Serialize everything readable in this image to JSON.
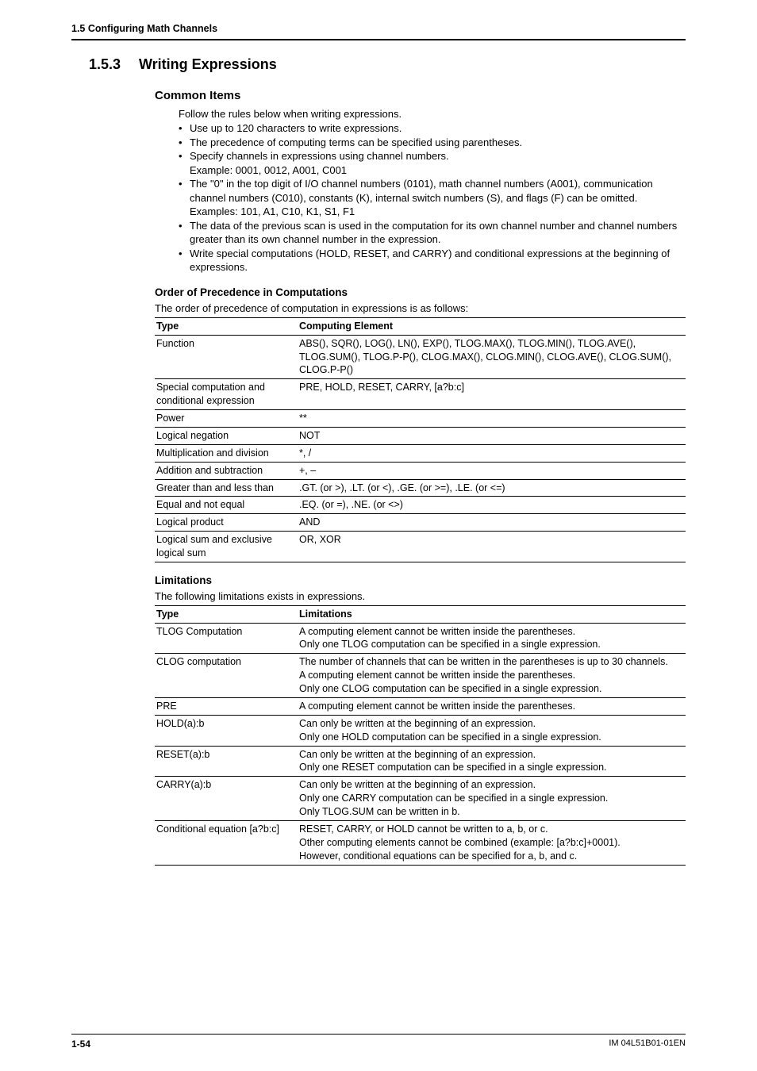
{
  "header": {
    "running": "1.5  Configuring Math Channels"
  },
  "section": {
    "number": "1.5.3",
    "title": "Writing Expressions"
  },
  "common": {
    "title": "Common Items",
    "intro": "Follow the rules below when writing expressions.",
    "bullets": [
      {
        "text": "Use up to 120 characters to write expressions."
      },
      {
        "text": "The precedence of computing terms can be specified using parentheses."
      },
      {
        "text": "Specify channels in expressions using channel numbers.",
        "sub": "Example: 0001, 0012, A001, C001"
      },
      {
        "text": "The \"0\" in the top digit of I/O channel numbers (0101), math channel numbers (A001), communication channel numbers (C010), constants (K), internal switch numbers (S), and flags (F) can be omitted.",
        "sub": "Examples: 101, A1, C10, K1, S1, F1"
      },
      {
        "text": "The data of the previous scan is used in the computation for its own channel number and channel numbers greater than its own channel number in the expression."
      },
      {
        "text": "Write special computations (HOLD, RESET, and CARRY) and conditional expressions at the beginning of expressions."
      }
    ]
  },
  "precedence": {
    "title": "Order of Precedence in Computations",
    "intro": "The order of precedence of computation in expressions is as follows:",
    "columns": [
      "Type",
      "Computing Element"
    ],
    "rows": [
      [
        "Function",
        "ABS(), SQR(), LOG(), LN(), EXP(), TLOG.MAX(), TLOG.MIN(), TLOG.AVE(), TLOG.SUM(), TLOG.P-P(), CLOG.MAX(), CLOG.MIN(), CLOG.AVE(), CLOG.SUM(), CLOG.P-P()"
      ],
      [
        "Special computation and conditional expression",
        "PRE, HOLD, RESET, CARRY, [a?b:c]"
      ],
      [
        "Power",
        "**"
      ],
      [
        "Logical negation",
        "NOT"
      ],
      [
        "Multiplication and division",
        "*, /"
      ],
      [
        "Addition and subtraction",
        "+, –"
      ],
      [
        "Greater than and less than",
        ".GT. (or >), .LT. (or <), .GE. (or >=), .LE. (or <=)"
      ],
      [
        "Equal and not equal",
        ".EQ. (or =), .NE. (or <>)"
      ],
      [
        "Logical product",
        "AND"
      ],
      [
        "Logical sum and exclusive logical sum",
        "OR, XOR"
      ]
    ]
  },
  "limitations": {
    "title": "Limitations",
    "intro": "The following limitations exists in expressions.",
    "columns": [
      "Type",
      "Limitations"
    ],
    "rows": [
      [
        "TLOG Computation",
        "A computing element cannot be written inside the parentheses.\nOnly one TLOG computation can be specified in a single expression."
      ],
      [
        "CLOG computation",
        "The number of channels that can be written in the parentheses is up to 30 channels.\nA computing element cannot be written inside the parentheses.\nOnly one CLOG computation can be specified in a single expression."
      ],
      [
        "PRE",
        "A computing element cannot be written inside the parentheses."
      ],
      [
        "HOLD(a):b",
        "Can only be written at the beginning of an expression.\nOnly one HOLD computation can be specified in a single expression."
      ],
      [
        "RESET(a):b",
        "Can only be written at the beginning of an expression.\nOnly one RESET computation can be specified in a single expression."
      ],
      [
        "CARRY(a):b",
        "Can only be written at the beginning of an expression.\nOnly one CARRY computation can be specified in a single expression.\nOnly TLOG.SUM can be written in b."
      ],
      [
        "Conditional equation [a?b:c]",
        "RESET, CARRY, or HOLD cannot be written to a, b, or c.\nOther computing elements cannot be combined (example: [a?b:c]+0001).\nHowever, conditional equations can be specified for a, b, and c."
      ]
    ]
  },
  "footer": {
    "page": "1-54",
    "doc": "IM 04L51B01-01EN"
  }
}
